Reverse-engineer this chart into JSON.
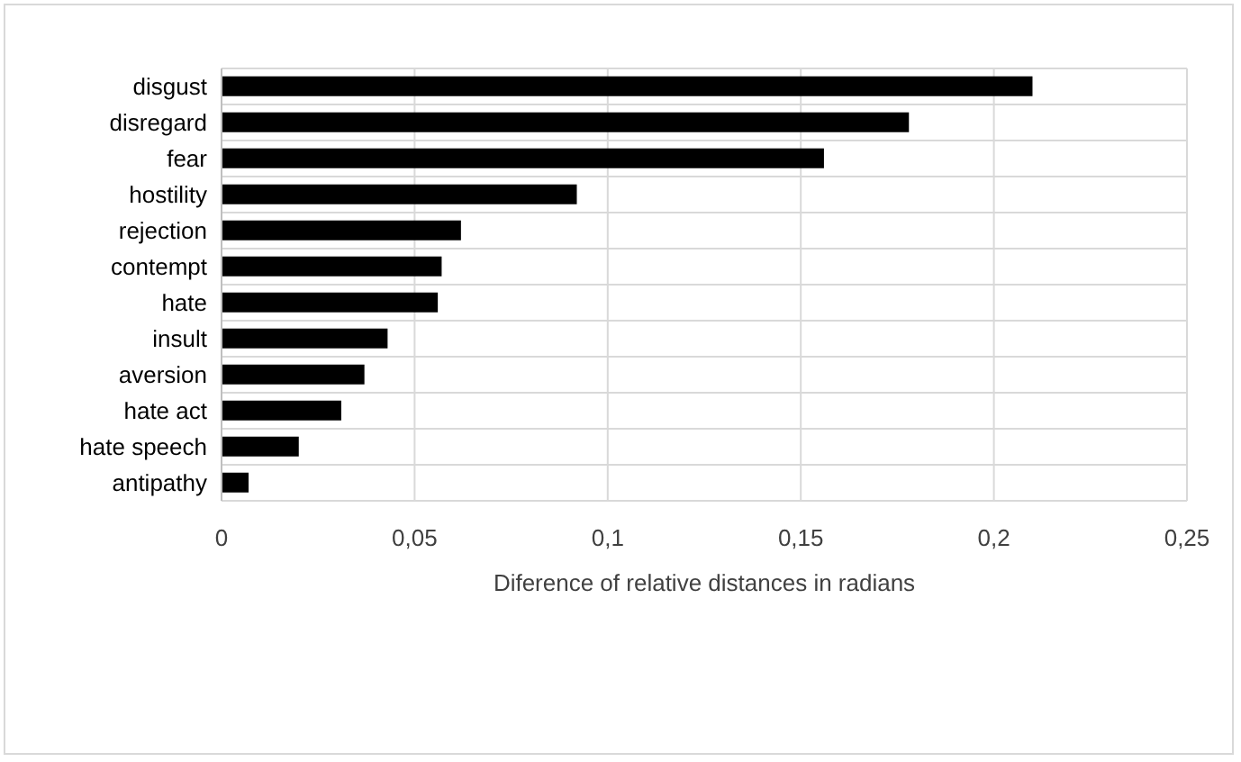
{
  "chart_data": {
    "type": "bar",
    "orientation": "horizontal",
    "xlabel": "Diference of relative distances in radians",
    "categories": [
      "disgust",
      "disregard",
      "fear",
      "hostility",
      "rejection",
      "contempt",
      "hate",
      "insult",
      "aversion",
      "hate act",
      "hate speech",
      "antipathy"
    ],
    "values": [
      0.21,
      0.178,
      0.156,
      0.092,
      0.062,
      0.057,
      0.056,
      0.043,
      0.037,
      0.031,
      0.02,
      0.007
    ],
    "color": "#000000",
    "xlim": [
      0,
      0.25
    ],
    "xticks": [
      0,
      {
        "value": 0.05,
        "label": "0,05"
      },
      {
        "value": 0.1,
        "label": "0,1"
      },
      {
        "value": 0.15,
        "label": "0,15"
      },
      {
        "value": 0.2,
        "label": "0,2"
      },
      {
        "value": 0.25,
        "label": "0,25"
      }
    ],
    "grid": true,
    "legend": false
  }
}
